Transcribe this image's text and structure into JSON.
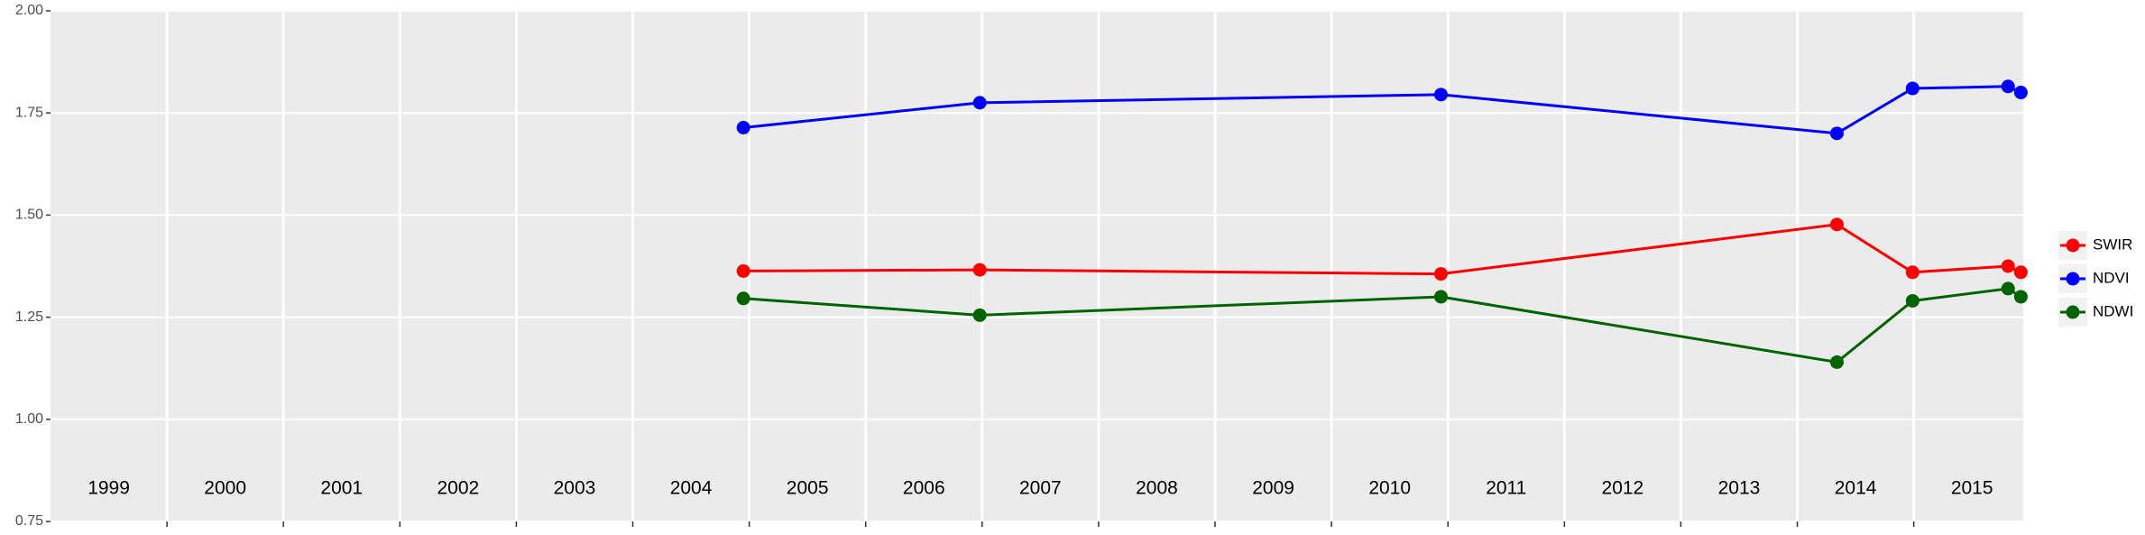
{
  "chart_data": {
    "type": "line",
    "x": [
      2004.95,
      2006.98,
      2010.94,
      2014.34,
      2014.99,
      2015.81,
      2015.92
    ],
    "series": [
      {
        "name": "SWIR",
        "color": "#ff0000",
        "values": [
          1.363,
          1.366,
          1.356,
          1.477,
          1.36,
          1.375,
          1.36
        ]
      },
      {
        "name": "NDVI",
        "color": "#0000ff",
        "values": [
          1.714,
          1.775,
          1.795,
          1.7,
          1.81,
          1.815,
          1.8
        ]
      },
      {
        "name": "NDWI",
        "color": "#006400",
        "values": [
          1.296,
          1.255,
          1.3,
          1.14,
          1.29,
          1.32,
          1.3
        ]
      }
    ],
    "xlim": [
      1999,
      2015.94
    ],
    "xticks": [
      2000,
      2001,
      2002,
      2003,
      2004,
      2005,
      2006,
      2007,
      2008,
      2009,
      2010,
      2011,
      2012,
      2013,
      2014,
      2015
    ],
    "ylim": [
      0.75,
      2.0
    ],
    "yticks": [
      "0.75",
      "1.00",
      "1.25",
      "1.50",
      "1.75",
      "2.00"
    ],
    "annotations": [
      {
        "text": "1999",
        "x": 1999.5
      },
      {
        "text": "2000",
        "x": 2000.5
      },
      {
        "text": "2001",
        "x": 2001.5
      },
      {
        "text": "2002",
        "x": 2002.5
      },
      {
        "text": "2003",
        "x": 2003.5
      },
      {
        "text": "2004",
        "x": 2004.5
      },
      {
        "text": "2005",
        "x": 2005.5
      },
      {
        "text": "2006",
        "x": 2006.5
      },
      {
        "text": "2007",
        "x": 2007.5
      },
      {
        "text": "2008",
        "x": 2008.5
      },
      {
        "text": "2009",
        "x": 2009.5
      },
      {
        "text": "2010",
        "x": 2010.5
      },
      {
        "text": "2011",
        "x": 2011.5
      },
      {
        "text": "2012",
        "x": 2012.5
      },
      {
        "text": "2013",
        "x": 2013.5
      },
      {
        "text": "2014",
        "x": 2014.5
      },
      {
        "text": "2015",
        "x": 2015.5
      }
    ],
    "annotation_y": 0.83,
    "grid": true,
    "legend": "right"
  }
}
